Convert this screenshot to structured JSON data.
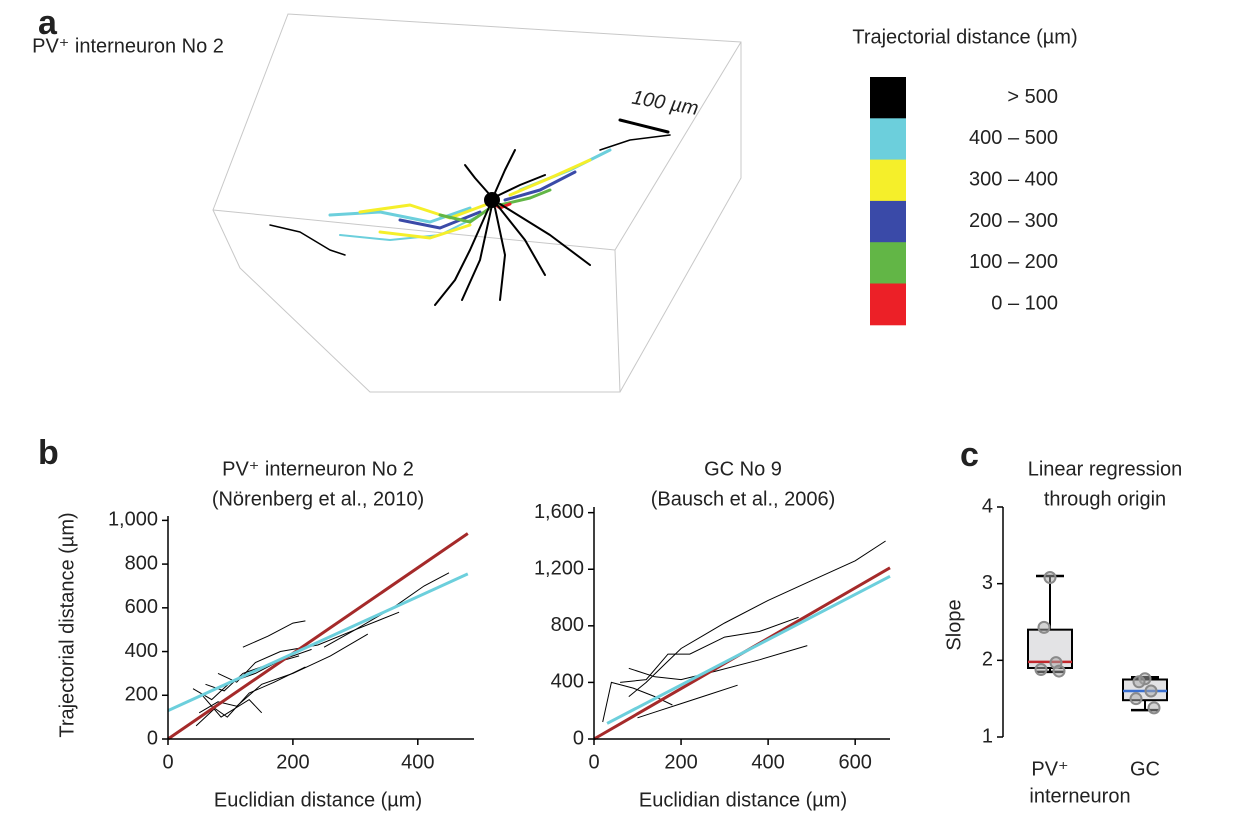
{
  "panel_labels": [
    "a",
    "b",
    "c"
  ],
  "chart_data": [
    {
      "type": "colormap",
      "title": "PV⁺ interneuron No 2",
      "scale_bar_label": "100 µm",
      "legend_title": "Trajectorial distance (µm)",
      "legend": [
        {
          "label": "> 500",
          "color": "#000000"
        },
        {
          "label": "400  –  500",
          "color": "#6ccfdc"
        },
        {
          "label": "300  –  400",
          "color": "#f5ef2a"
        },
        {
          "label": "200  –  300",
          "color": "#3a4aa8"
        },
        {
          "label": "100  –  200",
          "color": "#62b646"
        },
        {
          "label": "0  –  100",
          "color": "#ec2027"
        }
      ]
    },
    {
      "type": "line",
      "title": [
        "PV⁺ interneuron No 2",
        "(Nörenberg et al., 2010)"
      ],
      "xlabel": "Euclidian distance (µm)",
      "ylabel": "Trajectorial distance (µm)",
      "xlim": [
        0,
        490
      ],
      "ylim": [
        0,
        1020
      ],
      "xticks": [
        0,
        200,
        400
      ],
      "yticks": [
        0,
        200,
        400,
        600,
        800,
        {
          "value": 1000,
          "label": "1,000"
        }
      ],
      "series": [
        {
          "color": "#000000",
          "x": [
            40,
            70,
            100,
            140,
            180,
            230
          ],
          "values": [
            230,
            180,
            260,
            300,
            360,
            410
          ]
        },
        {
          "color": "#000000",
          "x": [
            50,
            80,
            110,
            150,
            200,
            260,
            320
          ],
          "values": [
            120,
            170,
            150,
            250,
            300,
            380,
            480
          ]
        },
        {
          "color": "#000000",
          "x": [
            60,
            90,
            120,
            160,
            210
          ],
          "values": [
            250,
            220,
            300,
            340,
            380
          ]
        },
        {
          "color": "#000000",
          "x": [
            45,
            75,
            95,
            130,
            170,
            220
          ],
          "values": [
            60,
            140,
            100,
            210,
            260,
            330
          ]
        },
        {
          "color": "#000000",
          "x": [
            120,
            160,
            200,
            220
          ],
          "values": [
            420,
            470,
            530,
            540
          ]
        },
        {
          "color": "#000000",
          "x": [
            250,
            300,
            360,
            410,
            450
          ],
          "values": [
            420,
            500,
            600,
            700,
            760
          ]
        },
        {
          "color": "#000000",
          "x": [
            80,
            110,
            140,
            180,
            240,
            300,
            370
          ],
          "values": [
            300,
            260,
            350,
            400,
            430,
            500,
            580
          ]
        },
        {
          "color": "#000000",
          "x": [
            55,
            85,
            130,
            150
          ],
          "values": [
            200,
            100,
            180,
            120
          ]
        },
        {
          "color": "#a52a2a",
          "x": [
            0,
            480
          ],
          "values": [
            0,
            940
          ]
        },
        {
          "color": "#6ccfdc",
          "x": [
            0,
            480
          ],
          "values": [
            130,
            755
          ]
        }
      ]
    },
    {
      "type": "line",
      "title": [
        "GC No 9",
        "(Bausch et al., 2006)"
      ],
      "xlabel": "Euclidian distance (µm)",
      "xlim": [
        0,
        680
      ],
      "ylim": [
        0,
        1640
      ],
      "xticks": [
        0,
        200,
        400,
        600
      ],
      "yticks": [
        0,
        400,
        800,
        {
          "value": 1200,
          "label": "1,200"
        },
        {
          "value": 1600,
          "label": "1,600"
        }
      ],
      "series": [
        {
          "color": "#000000",
          "x": [
            80,
            120,
            160,
            200,
            300,
            400,
            500,
            600,
            670
          ],
          "values": [
            300,
            400,
            520,
            640,
            820,
            980,
            1120,
            1260,
            1400
          ]
        },
        {
          "color": "#000000",
          "x": [
            60,
            120,
            170,
            220,
            300,
            380,
            470
          ],
          "values": [
            400,
            420,
            600,
            600,
            720,
            760,
            860
          ]
        },
        {
          "color": "#000000",
          "x": [
            100,
            150,
            200,
            260,
            330
          ],
          "values": [
            150,
            200,
            250,
            310,
            380
          ]
        },
        {
          "color": "#000000",
          "x": [
            80,
            140,
            200,
            280,
            380,
            490
          ],
          "values": [
            500,
            440,
            420,
            480,
            560,
            660
          ]
        },
        {
          "color": "#000000",
          "x": [
            20,
            40,
            90,
            140,
            180
          ],
          "values": [
            120,
            400,
            360,
            300,
            240
          ]
        },
        {
          "color": "#a52a2a",
          "x": [
            0,
            680
          ],
          "values": [
            0,
            1210
          ]
        },
        {
          "color": "#6ccfdc",
          "x": [
            30,
            680
          ],
          "values": [
            110,
            1150
          ]
        }
      ]
    },
    {
      "type": "box",
      "title": [
        "Linear regression",
        "through origin"
      ],
      "ylabel": "Slope",
      "ylim": [
        1,
        4
      ],
      "yticks": [
        1,
        2,
        3,
        4
      ],
      "categories": [
        [
          "PV⁺",
          "interneuron"
        ],
        [
          "GC"
        ]
      ],
      "boxes": [
        {
          "whisker_low": 1.85,
          "q1": 1.9,
          "median": 1.98,
          "q3": 2.4,
          "whisker_high": 3.1,
          "median_color": "#c0282d",
          "points": [
            3.08,
            2.43,
            1.97,
            1.88,
            1.86
          ]
        },
        {
          "whisker_low": 1.35,
          "q1": 1.48,
          "median": 1.6,
          "q3": 1.75,
          "whisker_high": 1.78,
          "median_color": "#3a6fd0",
          "points": [
            1.76,
            1.72,
            1.6,
            1.5,
            1.38
          ]
        }
      ]
    }
  ]
}
